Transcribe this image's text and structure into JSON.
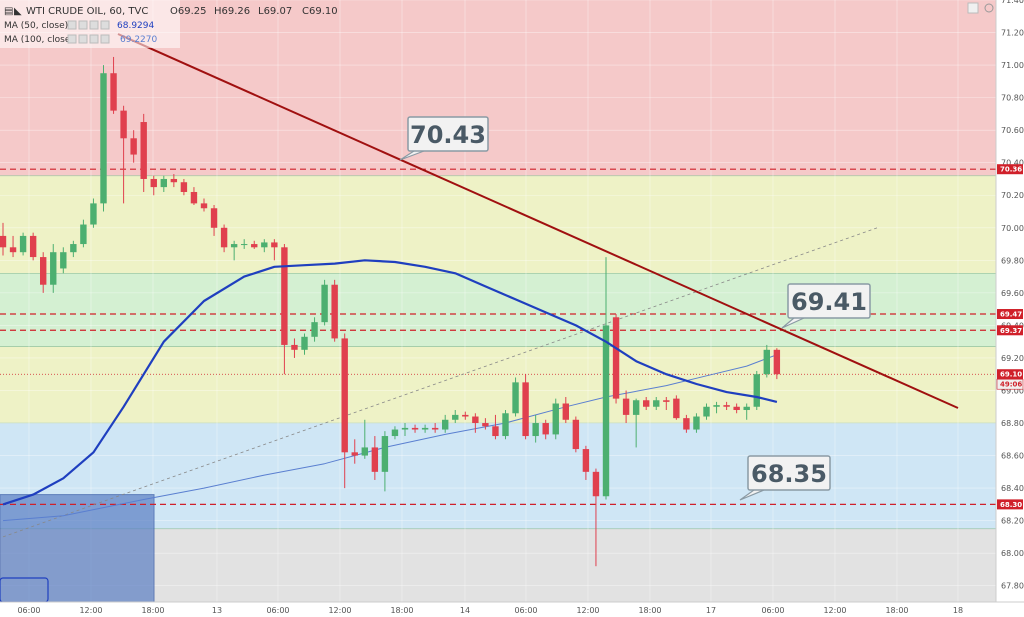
{
  "header": {
    "symbol": "WTI CRUDE OIL, 60, TVC",
    "ohlc": [
      "O69.25",
      "H69.26",
      "L69.07",
      "C69.10"
    ],
    "ma50_label": "MA (50, close)",
    "ma50_value": "68.9294",
    "ma100_label": "MA (100, close)",
    "ma100_value": "69.2270"
  },
  "colors": {
    "bull": "#4caf70",
    "bear": "#e0404e",
    "ma50": "#1f3fbf",
    "ma100": "#5a7fd0",
    "trend": "#a01010",
    "level": "#d0202a",
    "zone_red": "#f5c9c9",
    "zone_yellow": "#eef2c6",
    "zone_green": "#d4f0d2",
    "zone_blue": "#cfe6f5",
    "zone_gray": "#e2e2e2"
  },
  "chart_data": {
    "type": "candlestick",
    "ylim": [
      67.7,
      71.4
    ],
    "yticks": [
      "71.40",
      "71.20",
      "71.00",
      "70.80",
      "70.60",
      "70.40",
      "70.20",
      "70.00",
      "69.80",
      "69.60",
      "69.40",
      "69.20",
      "69.00",
      "68.80",
      "68.60",
      "68.40",
      "68.20",
      "68.00",
      "67.80"
    ],
    "xticks": [
      "06:00",
      "12:00",
      "18:00",
      "13",
      "06:00",
      "12:00",
      "18:00",
      "14",
      "06:00",
      "12:00",
      "18:00",
      "17",
      "06:00",
      "12:00",
      "18:00",
      "18"
    ],
    "candles": [
      {
        "o": 69.95,
        "h": 70.03,
        "l": 69.83,
        "c": 69.88
      },
      {
        "o": 69.88,
        "h": 69.95,
        "l": 69.82,
        "c": 69.85
      },
      {
        "o": 69.85,
        "h": 69.97,
        "l": 69.83,
        "c": 69.95
      },
      {
        "o": 69.95,
        "h": 69.97,
        "l": 69.8,
        "c": 69.82
      },
      {
        "o": 69.82,
        "h": 69.85,
        "l": 69.6,
        "c": 69.65
      },
      {
        "o": 69.65,
        "h": 69.9,
        "l": 69.6,
        "c": 69.85
      },
      {
        "o": 69.75,
        "h": 69.88,
        "l": 69.72,
        "c": 69.85
      },
      {
        "o": 69.85,
        "h": 69.92,
        "l": 69.82,
        "c": 69.9
      },
      {
        "o": 69.9,
        "h": 70.05,
        "l": 69.88,
        "c": 70.02
      },
      {
        "o": 70.02,
        "h": 70.18,
        "l": 70.0,
        "c": 70.15
      },
      {
        "o": 70.15,
        "h": 71.0,
        "l": 70.1,
        "c": 70.95
      },
      {
        "o": 70.95,
        "h": 71.05,
        "l": 70.7,
        "c": 70.72
      },
      {
        "o": 70.72,
        "h": 70.75,
        "l": 70.15,
        "c": 70.55
      },
      {
        "o": 70.55,
        "h": 70.6,
        "l": 70.4,
        "c": 70.45
      },
      {
        "o": 70.65,
        "h": 70.7,
        "l": 70.22,
        "c": 70.3
      },
      {
        "o": 70.3,
        "h": 70.32,
        "l": 70.2,
        "c": 70.25
      },
      {
        "o": 70.25,
        "h": 70.32,
        "l": 70.22,
        "c": 70.3
      },
      {
        "o": 70.3,
        "h": 70.33,
        "l": 70.25,
        "c": 70.28
      },
      {
        "o": 70.28,
        "h": 70.3,
        "l": 70.2,
        "c": 70.22
      },
      {
        "o": 70.22,
        "h": 70.25,
        "l": 70.14,
        "c": 70.15
      },
      {
        "o": 70.15,
        "h": 70.18,
        "l": 70.1,
        "c": 70.12
      },
      {
        "o": 70.12,
        "h": 70.14,
        "l": 69.95,
        "c": 70.0
      },
      {
        "o": 70.0,
        "h": 70.02,
        "l": 69.85,
        "c": 69.88
      },
      {
        "o": 69.88,
        "h": 69.92,
        "l": 69.8,
        "c": 69.9
      },
      {
        "o": 69.9,
        "h": 69.93,
        "l": 69.87,
        "c": 69.9
      },
      {
        "o": 69.9,
        "h": 69.92,
        "l": 69.87,
        "c": 69.88
      },
      {
        "o": 69.88,
        "h": 69.93,
        "l": 69.85,
        "c": 69.91
      },
      {
        "o": 69.91,
        "h": 69.93,
        "l": 69.8,
        "c": 69.88
      },
      {
        "o": 69.88,
        "h": 69.9,
        "l": 69.1,
        "c": 69.28
      },
      {
        "o": 69.28,
        "h": 69.32,
        "l": 69.2,
        "c": 69.25
      },
      {
        "o": 69.25,
        "h": 69.35,
        "l": 69.22,
        "c": 69.33
      },
      {
        "o": 69.33,
        "h": 69.45,
        "l": 69.3,
        "c": 69.42
      },
      {
        "o": 69.42,
        "h": 69.68,
        "l": 69.4,
        "c": 69.65
      },
      {
        "o": 69.65,
        "h": 69.68,
        "l": 69.3,
        "c": 69.32
      },
      {
        "o": 69.32,
        "h": 69.35,
        "l": 68.4,
        "c": 68.62
      },
      {
        "o": 68.62,
        "h": 68.7,
        "l": 68.55,
        "c": 68.6
      },
      {
        "o": 68.6,
        "h": 68.82,
        "l": 68.58,
        "c": 68.65
      },
      {
        "o": 68.65,
        "h": 68.72,
        "l": 68.45,
        "c": 68.5
      },
      {
        "o": 68.5,
        "h": 68.75,
        "l": 68.38,
        "c": 68.72
      },
      {
        "o": 68.72,
        "h": 68.78,
        "l": 68.7,
        "c": 68.76
      },
      {
        "o": 68.76,
        "h": 68.8,
        "l": 68.72,
        "c": 68.77
      },
      {
        "o": 68.77,
        "h": 68.79,
        "l": 68.74,
        "c": 68.76
      },
      {
        "o": 68.76,
        "h": 68.79,
        "l": 68.74,
        "c": 68.77
      },
      {
        "o": 68.77,
        "h": 68.8,
        "l": 68.74,
        "c": 68.76
      },
      {
        "o": 68.76,
        "h": 68.85,
        "l": 68.74,
        "c": 68.82
      },
      {
        "o": 68.82,
        "h": 68.88,
        "l": 68.8,
        "c": 68.85
      },
      {
        "o": 68.85,
        "h": 68.87,
        "l": 68.82,
        "c": 68.84
      },
      {
        "o": 68.84,
        "h": 68.86,
        "l": 68.74,
        "c": 68.8
      },
      {
        "o": 68.8,
        "h": 68.83,
        "l": 68.76,
        "c": 68.78
      },
      {
        "o": 68.78,
        "h": 68.85,
        "l": 68.7,
        "c": 68.72
      },
      {
        "o": 68.72,
        "h": 68.88,
        "l": 68.7,
        "c": 68.86
      },
      {
        "o": 68.86,
        "h": 69.08,
        "l": 68.84,
        "c": 69.05
      },
      {
        "o": 69.05,
        "h": 69.1,
        "l": 68.7,
        "c": 68.72
      },
      {
        "o": 68.72,
        "h": 68.85,
        "l": 68.68,
        "c": 68.8
      },
      {
        "o": 68.8,
        "h": 68.82,
        "l": 68.7,
        "c": 68.73
      },
      {
        "o": 68.73,
        "h": 68.95,
        "l": 68.7,
        "c": 68.92
      },
      {
        "o": 68.92,
        "h": 68.96,
        "l": 68.8,
        "c": 68.82
      },
      {
        "o": 68.82,
        "h": 68.84,
        "l": 68.62,
        "c": 68.64
      },
      {
        "o": 68.64,
        "h": 68.66,
        "l": 68.45,
        "c": 68.5
      },
      {
        "o": 68.5,
        "h": 68.52,
        "l": 67.92,
        "c": 68.35
      },
      {
        "o": 68.35,
        "h": 69.82,
        "l": 68.33,
        "c": 69.4
      },
      {
        "o": 69.45,
        "h": 69.47,
        "l": 68.92,
        "c": 68.95
      },
      {
        "o": 68.95,
        "h": 69.0,
        "l": 68.8,
        "c": 68.85
      },
      {
        "o": 68.85,
        "h": 68.95,
        "l": 68.65,
        "c": 68.94
      },
      {
        "o": 68.94,
        "h": 68.96,
        "l": 68.88,
        "c": 68.9
      },
      {
        "o": 68.9,
        "h": 68.96,
        "l": 68.88,
        "c": 68.94
      },
      {
        "o": 68.94,
        "h": 68.96,
        "l": 68.88,
        "c": 68.93
      },
      {
        "o": 68.95,
        "h": 68.97,
        "l": 68.82,
        "c": 68.83
      },
      {
        "o": 68.83,
        "h": 68.85,
        "l": 68.74,
        "c": 68.76
      },
      {
        "o": 68.76,
        "h": 68.86,
        "l": 68.74,
        "c": 68.84
      },
      {
        "o": 68.84,
        "h": 68.92,
        "l": 68.82,
        "c": 68.9
      },
      {
        "o": 68.9,
        "h": 68.93,
        "l": 68.86,
        "c": 68.91
      },
      {
        "o": 68.91,
        "h": 68.93,
        "l": 68.88,
        "c": 68.9
      },
      {
        "o": 68.9,
        "h": 68.92,
        "l": 68.86,
        "c": 68.88
      },
      {
        "o": 68.88,
        "h": 68.92,
        "l": 68.82,
        "c": 68.9
      },
      {
        "o": 68.9,
        "h": 69.12,
        "l": 68.88,
        "c": 69.1
      },
      {
        "o": 69.1,
        "h": 69.28,
        "l": 69.08,
        "c": 69.25
      },
      {
        "o": 69.25,
        "h": 69.26,
        "l": 69.07,
        "c": 69.1
      }
    ],
    "ma50": [
      [
        0,
        68.3
      ],
      [
        3,
        68.36
      ],
      [
        6,
        68.46
      ],
      [
        9,
        68.62
      ],
      [
        12,
        68.9
      ],
      [
        16,
        69.3
      ],
      [
        20,
        69.55
      ],
      [
        24,
        69.7
      ],
      [
        27,
        69.76
      ],
      [
        30,
        69.77
      ],
      [
        33,
        69.78
      ],
      [
        36,
        69.8
      ],
      [
        39,
        69.79
      ],
      [
        42,
        69.76
      ],
      [
        45,
        69.72
      ],
      [
        48,
        69.64
      ],
      [
        51,
        69.56
      ],
      [
        54,
        69.48
      ],
      [
        57,
        69.4
      ],
      [
        60,
        69.3
      ],
      [
        63,
        69.18
      ],
      [
        66,
        69.1
      ],
      [
        69,
        69.04
      ],
      [
        72,
        68.99
      ],
      [
        75,
        68.96
      ],
      [
        77,
        68.93
      ]
    ],
    "ma100": [
      [
        0,
        68.2
      ],
      [
        6,
        68.23
      ],
      [
        10,
        68.28
      ],
      [
        14,
        68.33
      ],
      [
        20,
        68.4
      ],
      [
        26,
        68.48
      ],
      [
        32,
        68.55
      ],
      [
        38,
        68.65
      ],
      [
        44,
        68.73
      ],
      [
        50,
        68.8
      ],
      [
        56,
        68.9
      ],
      [
        60,
        68.96
      ],
      [
        66,
        69.03
      ],
      [
        70,
        69.09
      ],
      [
        74,
        69.15
      ],
      [
        77,
        69.22
      ]
    ],
    "trendline": [
      [
        10,
        71.1
      ],
      [
        80,
        68.7
      ]
    ],
    "dotted_trend": [
      [
        0,
        68.1
      ],
      [
        87,
        70.0
      ]
    ],
    "levels": [
      {
        "price": 70.36,
        "label": "70.36"
      },
      {
        "price": 69.47,
        "label": "69.47"
      },
      {
        "price": 69.37,
        "label": "69.37"
      },
      {
        "price": 68.3,
        "label": "68.30"
      }
    ],
    "last_price": {
      "price": 69.1,
      "label": "69.10",
      "countdown": "49:06"
    },
    "zones": [
      {
        "from": 71.4,
        "to": 70.32,
        "color": "zone_red"
      },
      {
        "from": 70.32,
        "to": 69.72,
        "color": "zone_yellow"
      },
      {
        "from": 69.72,
        "to": 69.27,
        "color": "zone_green"
      },
      {
        "from": 69.27,
        "to": 68.8,
        "color": "zone_yellow"
      },
      {
        "from": 68.8,
        "to": 68.15,
        "color": "zone_blue"
      },
      {
        "from": 68.15,
        "to": 67.7,
        "color": "zone_gray"
      }
    ],
    "callouts": [
      {
        "text": "70.43",
        "price": 70.43
      },
      {
        "text": "69.41",
        "price": 69.41
      },
      {
        "text": "68.35",
        "price": 68.35
      }
    ]
  }
}
